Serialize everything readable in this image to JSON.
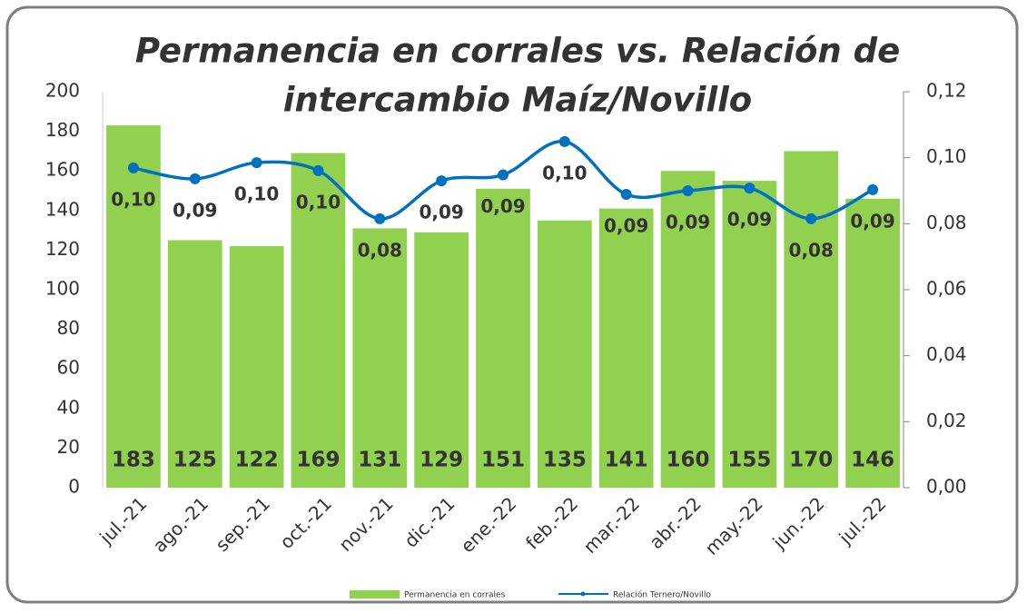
{
  "chart_data": {
    "type": "bar_line",
    "title": [
      "Permanencia en corrales vs. Relación de",
      "intercambio Maíz/Novillo"
    ],
    "categories": [
      "jul.-21",
      "ago.-21",
      "sep.-21",
      "oct.-21",
      "nov.-21",
      "dic.-21",
      "ene.-22",
      "feb.-22",
      "mar.-22",
      "abr.-22",
      "may.-22",
      "jun.-22",
      "jul.-22"
    ],
    "series": [
      {
        "name": "Permanencia en corrales",
        "color": "#92d050",
        "type": "bar",
        "values": [
          183,
          125,
          122,
          169,
          131,
          129,
          151,
          135,
          141,
          160,
          155,
          170,
          146
        ]
      },
      {
        "name": "Relación Ternero/Novillo",
        "color": "#0070c0",
        "type": "line",
        "axis": "y2",
        "values": [
          0.0969,
          0.0936,
          0.0985,
          0.0961,
          0.0815,
          0.093,
          0.0948,
          0.1049,
          0.0889,
          0.09,
          0.0908,
          0.0815,
          0.0903
        ],
        "value_labels": [
          "0,10",
          "0,09",
          "0,10",
          "0,10",
          "0,08",
          "0,09",
          "0,09",
          "0,10",
          "0,09",
          "0,09",
          "0,09",
          "0,08",
          "0,09"
        ]
      }
    ],
    "ylim": [
      0,
      200
    ],
    "yticks": [
      0,
      20,
      40,
      60,
      80,
      100,
      120,
      140,
      160,
      180,
      200
    ],
    "y2lim": [
      0,
      0.12
    ],
    "y2ticks": [
      {
        "value": 0,
        "label": "0,00"
      },
      {
        "value": 0.02,
        "label": "0,02"
      },
      {
        "value": 0.04,
        "label": "0,04"
      },
      {
        "value": 0.06,
        "label": "0,06"
      },
      {
        "value": 0.08,
        "label": "0,08"
      },
      {
        "value": 0.1,
        "label": "0,10"
      },
      {
        "value": 0.12,
        "label": "0,12"
      }
    ],
    "legend": "bottom"
  }
}
